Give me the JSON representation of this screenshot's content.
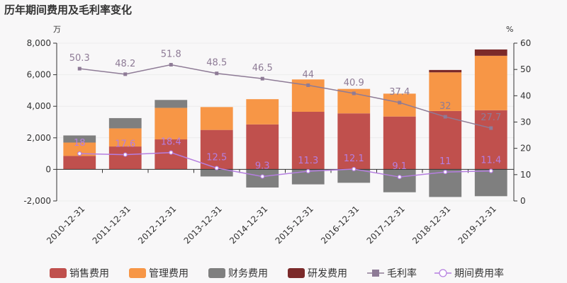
{
  "chart_data": {
    "type": "bar",
    "stacked": true,
    "title": "历年期间费用及毛利率变化",
    "left_unit": "万",
    "right_unit": "%",
    "categories": [
      "2010-12-31",
      "2011-12-31",
      "2012-12-31",
      "2013-12-31",
      "2014-12-31",
      "2015-12-31",
      "2016-12-31",
      "2017-12-31",
      "2018-12-31",
      "2019-12-31"
    ],
    "y_left": {
      "min": -2000,
      "max": 8000,
      "ticks": [
        "-2,000",
        "0",
        "2,000",
        "4,000",
        "6,000",
        "8,000"
      ],
      "tick_values": [
        -2000,
        0,
        2000,
        4000,
        6000,
        8000
      ]
    },
    "y_right": {
      "min": 0,
      "max": 60,
      "ticks": [
        "0",
        "10",
        "20",
        "30",
        "40",
        "50",
        "60"
      ],
      "tick_values": [
        0,
        10,
        20,
        30,
        40,
        50,
        60
      ]
    },
    "grid": true,
    "legend_position": "bottom",
    "series": [
      {
        "name": "销售费用",
        "kind": "bar",
        "color": "#c0504d",
        "values": [
          850,
          1450,
          1900,
          2500,
          2850,
          3650,
          3550,
          3350,
          3700,
          3750
        ]
      },
      {
        "name": "管理费用",
        "kind": "bar",
        "color": "#f79646",
        "values": [
          850,
          1150,
          2000,
          1450,
          1600,
          2050,
          1550,
          1450,
          2450,
          3450
        ]
      },
      {
        "name": "财务费用",
        "kind": "bar",
        "color": "#7f7f7f",
        "values": [
          450,
          650,
          500,
          -450,
          -1150,
          -950,
          -850,
          -1450,
          -1750,
          -1700
        ]
      },
      {
        "name": "研发费用",
        "kind": "bar",
        "color": "#7b2a2a",
        "values": [
          0,
          0,
          0,
          0,
          0,
          0,
          0,
          0,
          150,
          400
        ]
      },
      {
        "name": "毛利率",
        "kind": "line",
        "axis": "right",
        "color": "#8e7b96",
        "marker": "square",
        "values": [
          50.3,
          48.2,
          51.8,
          48.5,
          46.5,
          44,
          40.9,
          37.4,
          32,
          27.7
        ],
        "labels": [
          "50.3",
          "48.2",
          "51.8",
          "48.5",
          "46.5",
          "44",
          "40.9",
          "37.4",
          "32",
          "27.7"
        ]
      },
      {
        "name": "期间费用率",
        "kind": "line",
        "axis": "right",
        "color": "#b57ee0",
        "marker": "circle",
        "values": [
          18,
          17.6,
          18.4,
          12.5,
          9.3,
          11.3,
          12.1,
          9.1,
          11,
          11.4
        ],
        "labels": [
          "18",
          "17.6",
          "18.4",
          "12.5",
          "9.3",
          "11.3",
          "12.1",
          "9.1",
          "11",
          "11.4"
        ]
      }
    ]
  }
}
